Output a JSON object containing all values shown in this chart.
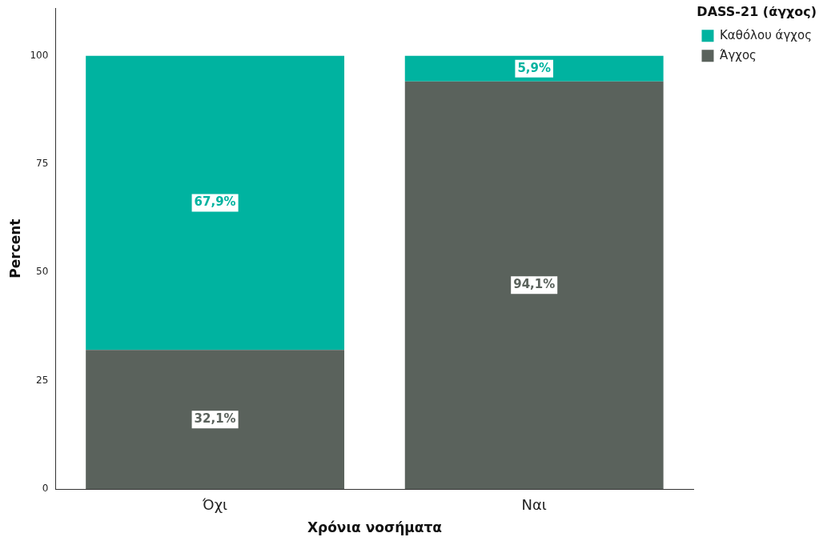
{
  "chart_data": {
    "type": "bar",
    "stacked": true,
    "xlabel": "Χρόνια νοσήματα",
    "ylabel": "Percent",
    "legend_title": "DASS-21 (άγχος)",
    "legend": "top right",
    "grid": false,
    "categories": [
      "Όχι",
      "Ναι"
    ],
    "ylim": [
      0,
      111
    ],
    "yticks": [
      0,
      25,
      50,
      75,
      100
    ],
    "series": [
      {
        "name": "Άγχος",
        "color": "#5a625c",
        "values": [
          32.1,
          94.1
        ],
        "value_labels": [
          "32,1%",
          "94,1%"
        ]
      },
      {
        "name": "Καθόλου άγχος",
        "color": "#00b3a0",
        "values": [
          67.9,
          5.9
        ],
        "value_labels": [
          "67,9%",
          "5,9%"
        ]
      }
    ]
  }
}
